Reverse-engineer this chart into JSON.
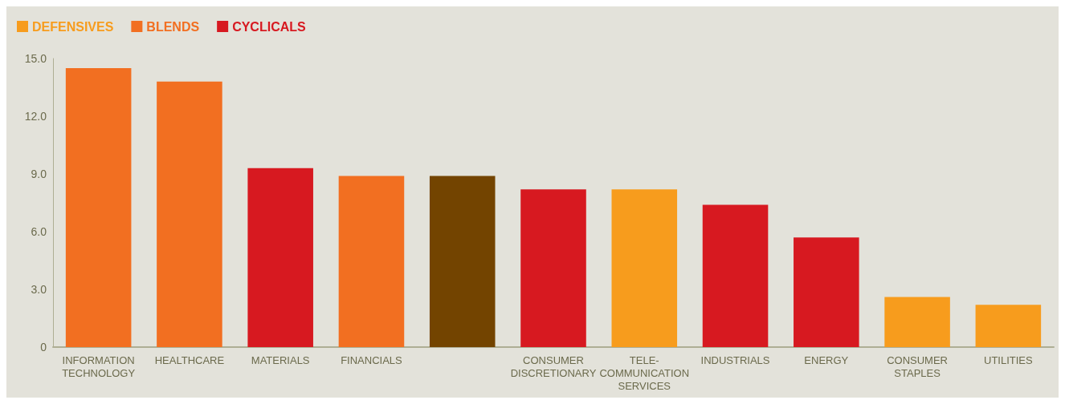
{
  "chart_data": {
    "type": "bar",
    "stacked": true,
    "legend": "top left",
    "grid": false,
    "categories": [
      "INFORMATION TECHNOLOGY",
      "HEALTHCARE",
      "MATERIALS",
      "FINANCIALS",
      null,
      "CONSUMER DISCRETIONARY",
      "TELE-COMMUNICATION SERVICES",
      "INDUSTRIALS",
      "ENERGY",
      "CONSUMER STAPLES",
      "UTILITIES"
    ],
    "series": [
      {
        "name": "DEFENSIVES",
        "color": "#f79c1d",
        "values": [
          null,
          null,
          null,
          null,
          null,
          null,
          8.2,
          null,
          null,
          2.6,
          2.2
        ]
      },
      {
        "name": "BLENDS",
        "color": "#f26f21",
        "values": [
          14.5,
          13.8,
          null,
          8.9,
          null,
          null,
          null,
          null,
          null,
          null,
          null
        ]
      },
      {
        "name": "CYCLICALS",
        "color": "#d71920",
        "values": [
          null,
          null,
          9.3,
          null,
          null,
          8.2,
          null,
          7.4,
          5.7,
          null,
          null
        ]
      },
      {
        "color": "#734400",
        "values": [
          null,
          null,
          null,
          null,
          8.9,
          null,
          null,
          null,
          null,
          null,
          null
        ]
      }
    ],
    "ylim": [
      0,
      15
    ],
    "yticks": [
      0,
      {
        "value": 3,
        "label": "3.0"
      },
      {
        "value": 6,
        "label": "6.0"
      },
      {
        "value": 9,
        "label": "9.0"
      },
      {
        "value": 12,
        "label": "12.0"
      },
      {
        "value": 15,
        "label": "15.0"
      }
    ]
  }
}
